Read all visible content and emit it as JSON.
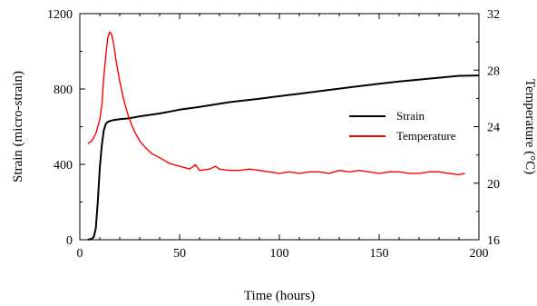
{
  "chart_data": {
    "type": "line",
    "title": "",
    "xlabel": "Time (hours)",
    "ylabel": "Strain (micro-strain)",
    "y2label": "Temperature (°C)",
    "xlim": [
      0,
      200
    ],
    "ylim": [
      0,
      1200
    ],
    "y2lim": [
      16,
      32
    ],
    "xticks": [
      0,
      50,
      100,
      150,
      200
    ],
    "yticks": [
      0,
      400,
      800,
      1200
    ],
    "y2ticks": [
      16,
      20,
      24,
      28,
      32
    ],
    "grid": false,
    "legend": "right",
    "series": [
      {
        "name": "Strain",
        "axis": "left",
        "color": "#000000",
        "x": [
          4,
          6,
          7,
          8,
          9,
          10,
          11,
          12,
          13,
          14,
          15,
          17,
          20,
          25,
          30,
          40,
          50,
          60,
          75,
          90,
          100,
          110,
          125,
          140,
          150,
          160,
          175,
          190,
          200
        ],
        "y": [
          0,
          5,
          15,
          60,
          200,
          380,
          500,
          580,
          615,
          625,
          630,
          635,
          640,
          645,
          655,
          670,
          690,
          705,
          730,
          748,
          762,
          775,
          795,
          815,
          828,
          840,
          855,
          870,
          872
        ]
      },
      {
        "name": "Temperature",
        "axis": "right",
        "color": "#ff0000",
        "x": [
          4,
          6,
          8,
          10,
          11,
          12,
          13,
          14,
          15,
          16,
          17,
          18,
          20,
          22,
          24,
          26,
          28,
          30,
          33,
          36,
          40,
          45,
          50,
          55,
          58,
          60,
          65,
          68,
          70,
          75,
          80,
          85,
          90,
          95,
          100,
          105,
          110,
          115,
          120,
          125,
          130,
          135,
          140,
          145,
          150,
          155,
          160,
          165,
          170,
          175,
          180,
          185,
          190,
          193
        ],
        "y": [
          22.8,
          23.0,
          23.5,
          24.5,
          25.5,
          27.5,
          29.0,
          30.3,
          30.7,
          30.5,
          29.8,
          28.8,
          27.2,
          25.9,
          24.9,
          24.1,
          23.5,
          23.0,
          22.5,
          22.1,
          21.8,
          21.4,
          21.2,
          21.0,
          21.3,
          20.9,
          21.0,
          21.2,
          21.0,
          20.9,
          20.9,
          21.0,
          20.9,
          20.8,
          20.7,
          20.8,
          20.7,
          20.8,
          20.8,
          20.7,
          20.9,
          20.8,
          20.9,
          20.8,
          20.7,
          20.8,
          20.8,
          20.7,
          20.7,
          20.8,
          20.8,
          20.7,
          20.6,
          20.7
        ]
      }
    ]
  }
}
